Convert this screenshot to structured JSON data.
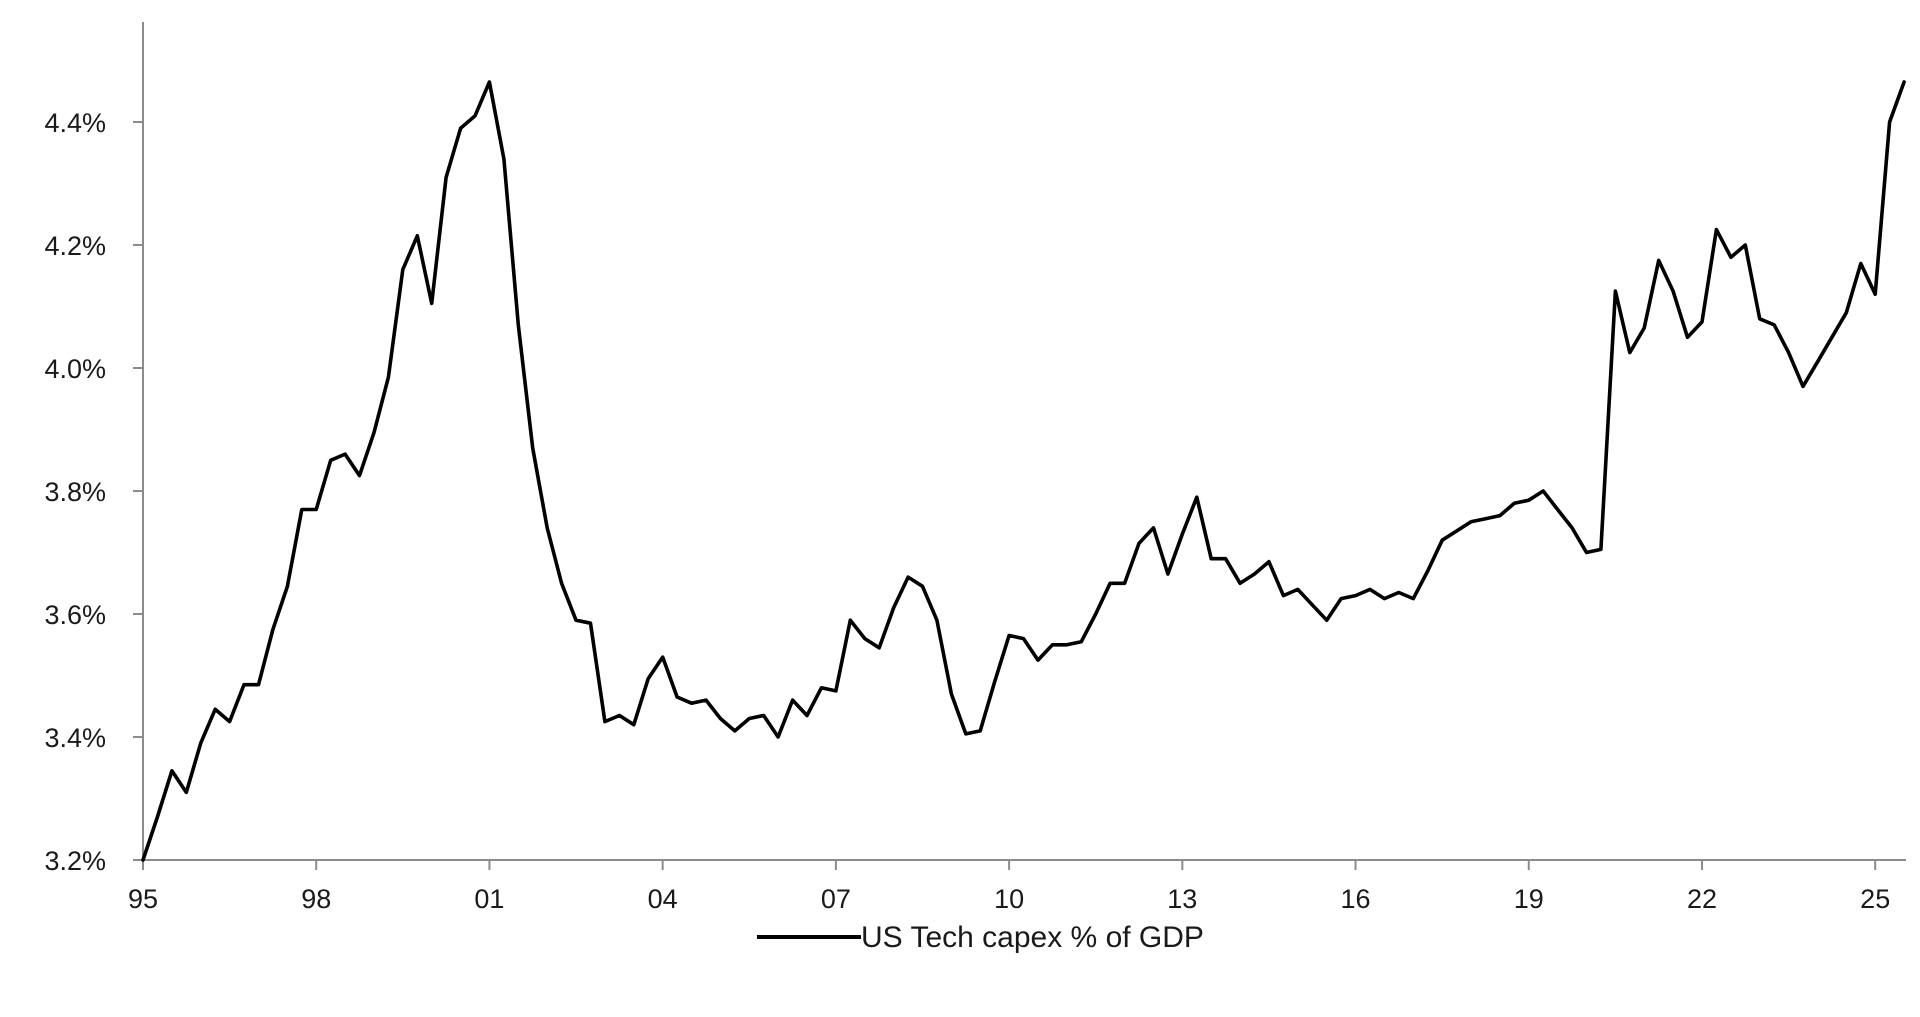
{
  "chart_data": {
    "type": "line",
    "x_tick_labels": [
      "95",
      "98",
      "01",
      "04",
      "07",
      "10",
      "13",
      "16",
      "19",
      "22",
      "25"
    ],
    "x_tick_years": [
      1995,
      1998,
      2001,
      2004,
      2007,
      2010,
      2013,
      2016,
      2019,
      2022,
      2025
    ],
    "xlim": [
      1995,
      2025.5
    ],
    "y_tick_labels": [
      "3.2%",
      "3.4%",
      "3.6%",
      "3.8%",
      "4.0%",
      "4.2%",
      "4.4%"
    ],
    "y_tick_values": [
      3.2,
      3.4,
      3.6,
      3.8,
      4.0,
      4.2,
      4.4
    ],
    "ylim": [
      3.2,
      4.52
    ],
    "y_unit": "%",
    "grid": false,
    "legend_position": "bottom-center",
    "series": [
      {
        "name": "US Tech capex % of GDP",
        "color": "#000000",
        "x": [
          1995.0,
          1995.25,
          1995.5,
          1995.75,
          1996.0,
          1996.25,
          1996.5,
          1996.75,
          1997.0,
          1997.25,
          1997.5,
          1997.75,
          1998.0,
          1998.25,
          1998.5,
          1998.75,
          1999.0,
          1999.25,
          1999.5,
          1999.75,
          2000.0,
          2000.25,
          2000.5,
          2000.75,
          2001.0,
          2001.25,
          2001.5,
          2001.75,
          2002.0,
          2002.25,
          2002.5,
          2002.75,
          2003.0,
          2003.25,
          2003.5,
          2003.75,
          2004.0,
          2004.25,
          2004.5,
          2004.75,
          2005.0,
          2005.25,
          2005.5,
          2005.75,
          2006.0,
          2006.25,
          2006.5,
          2006.75,
          2007.0,
          2007.25,
          2007.5,
          2007.75,
          2008.0,
          2008.25,
          2008.5,
          2008.75,
          2009.0,
          2009.25,
          2009.5,
          2009.75,
          2010.0,
          2010.25,
          2010.5,
          2010.75,
          2011.0,
          2011.25,
          2011.5,
          2011.75,
          2012.0,
          2012.25,
          2012.5,
          2012.75,
          2013.0,
          2013.25,
          2013.5,
          2013.75,
          2014.0,
          2014.25,
          2014.5,
          2014.75,
          2015.0,
          2015.25,
          2015.5,
          2015.75,
          2016.0,
          2016.25,
          2016.5,
          2016.75,
          2017.0,
          2017.25,
          2017.5,
          2017.75,
          2018.0,
          2018.25,
          2018.5,
          2018.75,
          2019.0,
          2019.25,
          2019.5,
          2019.75,
          2020.0,
          2020.25,
          2020.5,
          2020.75,
          2021.0,
          2021.25,
          2021.5,
          2021.75,
          2022.0,
          2022.25,
          2022.5,
          2022.75,
          2023.0,
          2023.25,
          2023.5,
          2023.75,
          2024.0,
          2024.25,
          2024.5,
          2024.75,
          2025.0,
          2025.25,
          2025.5
        ],
        "values": [
          3.2,
          3.27,
          3.345,
          3.31,
          3.39,
          3.445,
          3.425,
          3.485,
          3.485,
          3.575,
          3.645,
          3.77,
          3.77,
          3.85,
          3.86,
          3.825,
          3.895,
          3.985,
          4.16,
          4.215,
          4.105,
          4.31,
          4.39,
          4.41,
          4.465,
          4.34,
          4.07,
          3.87,
          3.74,
          3.65,
          3.59,
          3.585,
          3.425,
          3.435,
          3.42,
          3.495,
          3.53,
          3.465,
          3.455,
          3.46,
          3.43,
          3.41,
          3.43,
          3.435,
          3.4,
          3.46,
          3.435,
          3.48,
          3.475,
          3.59,
          3.56,
          3.545,
          3.61,
          3.66,
          3.645,
          3.59,
          3.47,
          3.405,
          3.41,
          3.49,
          3.565,
          3.56,
          3.525,
          3.55,
          3.55,
          3.555,
          3.6,
          3.65,
          3.65,
          3.715,
          3.74,
          3.665,
          3.73,
          3.79,
          3.69,
          3.69,
          3.65,
          3.665,
          3.685,
          3.63,
          3.64,
          3.615,
          3.59,
          3.625,
          3.63,
          3.64,
          3.625,
          3.635,
          3.625,
          3.67,
          3.72,
          3.735,
          3.75,
          3.755,
          3.76,
          3.78,
          3.785,
          3.8,
          3.77,
          3.74,
          3.7,
          3.705,
          4.125,
          4.025,
          4.065,
          4.175,
          4.125,
          4.05,
          4.075,
          4.225,
          4.18,
          4.2,
          4.08,
          4.07,
          4.025,
          3.97,
          4.01,
          4.05,
          4.09,
          4.17,
          4.12,
          4.4,
          4.465
        ]
      }
    ]
  }
}
